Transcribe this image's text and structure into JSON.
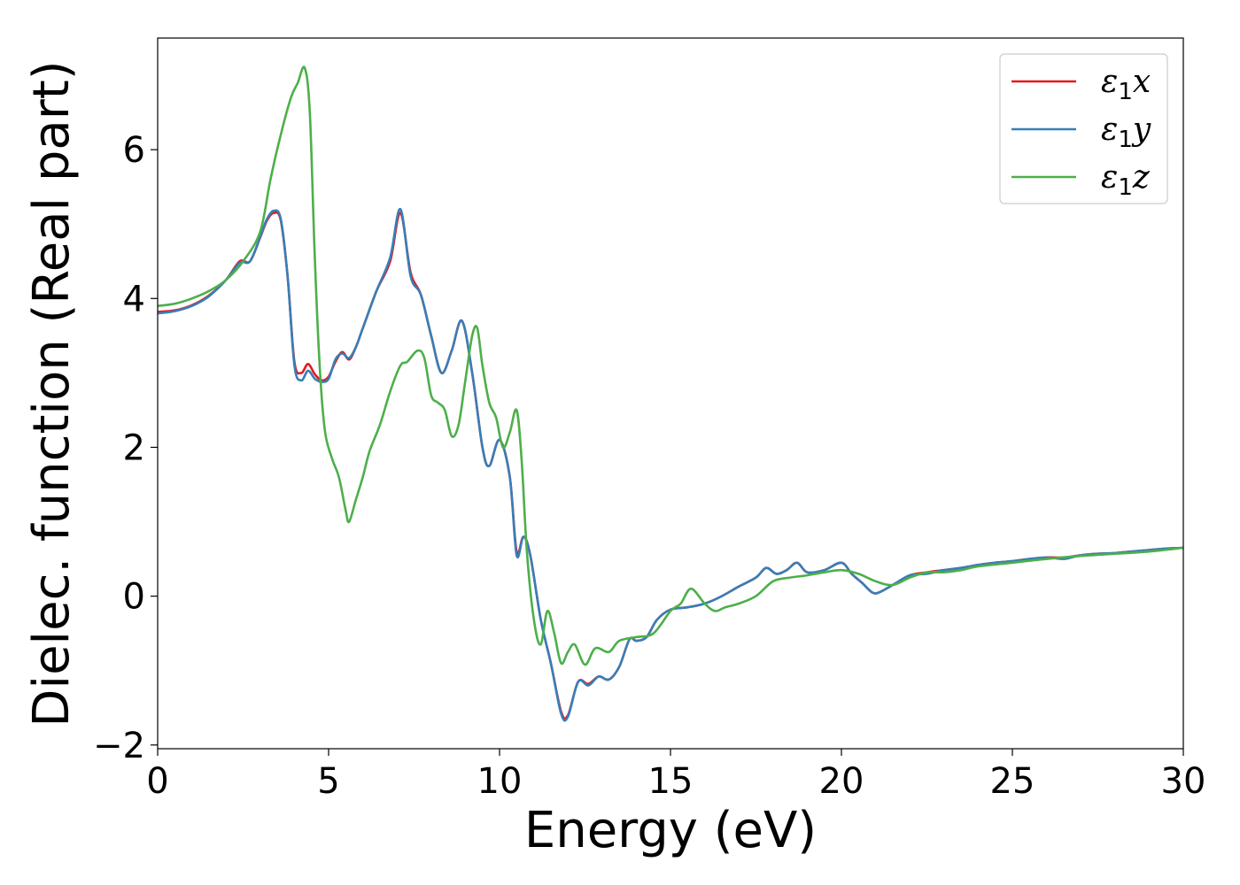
{
  "chart_data": {
    "type": "line",
    "title": "",
    "xlabel": "Energy (eV)",
    "ylabel": "Dielec. function (Real part)",
    "xlim": [
      0,
      30
    ],
    "ylim": [
      -2.05,
      7.5
    ],
    "xticks": [
      0,
      5,
      10,
      15,
      20,
      25,
      30
    ],
    "xtick_labels": [
      "0",
      "5",
      "10",
      "15",
      "20",
      "25",
      "30"
    ],
    "yticks": [
      -2,
      0,
      2,
      4,
      6
    ],
    "ytick_labels": [
      "−2",
      "0",
      "2",
      "4",
      "6"
    ],
    "grid": false,
    "legend": "top-right",
    "series": [
      {
        "name": "ε1x",
        "symbol": "ε",
        "subscript": "1",
        "component": "x",
        "color": "#e41a1c",
        "x": [
          0,
          0.5,
          1,
          1.5,
          2,
          2.4,
          2.7,
          3,
          3.2,
          3.4,
          3.6,
          3.8,
          4,
          4.2,
          4.4,
          4.6,
          4.8,
          5,
          5.2,
          5.4,
          5.6,
          5.8,
          6,
          6.4,
          6.8,
          7.1,
          7.4,
          7.7,
          8,
          8.3,
          8.6,
          8.9,
          9.2,
          9.5,
          9.7,
          10,
          10.3,
          10.5,
          10.7,
          10.9,
          11.2,
          11.5,
          11.8,
          12,
          12.3,
          12.6,
          12.9,
          13.2,
          13.5,
          13.8,
          14,
          14.3,
          14.6,
          15,
          15.5,
          16,
          16.5,
          17,
          17.5,
          17.8,
          18.1,
          18.4,
          18.7,
          19,
          19.5,
          20,
          20.3,
          20.6,
          20.9,
          21.1,
          21.5,
          22,
          22.5,
          23,
          23.5,
          24,
          24.5,
          25,
          25.5,
          26,
          26.5,
          27,
          27.5,
          28,
          28.5,
          29,
          29.5,
          30
        ],
        "y": [
          3.82,
          3.84,
          3.91,
          4.04,
          4.25,
          4.5,
          4.5,
          4.82,
          5.05,
          5.15,
          5.05,
          4.3,
          3.15,
          3.0,
          3.12,
          2.98,
          2.9,
          2.95,
          3.15,
          3.28,
          3.18,
          3.35,
          3.6,
          4.1,
          4.5,
          5.15,
          4.35,
          4.05,
          3.5,
          3.0,
          3.3,
          3.7,
          3.0,
          2.0,
          1.75,
          2.1,
          1.6,
          0.6,
          0.8,
          0.55,
          -0.3,
          -0.9,
          -1.55,
          -1.6,
          -1.15,
          -1.18,
          -1.08,
          -1.12,
          -0.95,
          -0.58,
          -0.6,
          -0.55,
          -0.32,
          -0.18,
          -0.15,
          -0.1,
          0.0,
          0.13,
          0.25,
          0.38,
          0.3,
          0.35,
          0.45,
          0.32,
          0.35,
          0.45,
          0.3,
          0.18,
          0.05,
          0.05,
          0.15,
          0.28,
          0.32,
          0.35,
          0.38,
          0.42,
          0.45,
          0.47,
          0.5,
          0.52,
          0.52,
          0.55,
          0.57,
          0.58,
          0.6,
          0.62,
          0.64,
          0.65
        ]
      },
      {
        "name": "ε1y",
        "symbol": "ε",
        "subscript": "1",
        "component": "y",
        "color": "#377eb8",
        "x": [
          0,
          0.5,
          1,
          1.5,
          2,
          2.4,
          2.7,
          3,
          3.2,
          3.4,
          3.6,
          3.8,
          4,
          4.2,
          4.4,
          4.6,
          4.8,
          5,
          5.2,
          5.4,
          5.6,
          5.8,
          6,
          6.4,
          6.8,
          7.1,
          7.4,
          7.7,
          8,
          8.3,
          8.6,
          8.9,
          9.2,
          9.5,
          9.7,
          10,
          10.3,
          10.5,
          10.7,
          10.9,
          11.2,
          11.5,
          11.8,
          12,
          12.3,
          12.6,
          12.9,
          13.2,
          13.5,
          13.8,
          14,
          14.3,
          14.6,
          15,
          15.5,
          16,
          16.5,
          17,
          17.5,
          17.8,
          18.1,
          18.4,
          18.7,
          19,
          19.5,
          20,
          20.3,
          20.6,
          20.9,
          21.1,
          21.5,
          22,
          22.5,
          23,
          23.5,
          24,
          24.5,
          25,
          25.5,
          26,
          26.5,
          27,
          27.5,
          28,
          28.5,
          29,
          29.5,
          30
        ],
        "y": [
          3.8,
          3.83,
          3.9,
          4.03,
          4.25,
          4.48,
          4.5,
          4.83,
          5.07,
          5.18,
          5.07,
          4.3,
          3.1,
          2.9,
          3.03,
          2.92,
          2.88,
          2.92,
          3.18,
          3.26,
          3.2,
          3.35,
          3.6,
          4.1,
          4.55,
          5.2,
          4.3,
          4.05,
          3.5,
          3.0,
          3.3,
          3.7,
          3.0,
          2.0,
          1.75,
          2.1,
          1.6,
          0.55,
          0.8,
          0.55,
          -0.3,
          -0.9,
          -1.58,
          -1.62,
          -1.15,
          -1.2,
          -1.08,
          -1.12,
          -0.95,
          -0.58,
          -0.6,
          -0.55,
          -0.32,
          -0.18,
          -0.15,
          -0.1,
          0.0,
          0.13,
          0.25,
          0.38,
          0.3,
          0.35,
          0.45,
          0.32,
          0.35,
          0.45,
          0.3,
          0.18,
          0.05,
          0.05,
          0.15,
          0.28,
          0.3,
          0.35,
          0.38,
          0.42,
          0.45,
          0.47,
          0.5,
          0.52,
          0.5,
          0.55,
          0.57,
          0.58,
          0.6,
          0.62,
          0.64,
          0.65
        ]
      },
      {
        "name": "ε1z",
        "symbol": "ε",
        "subscript": "1",
        "component": "z",
        "color": "#4daf4a",
        "x": [
          0,
          0.5,
          1,
          1.5,
          2,
          2.5,
          3,
          3.3,
          3.6,
          3.9,
          4.1,
          4.3,
          4.45,
          4.6,
          4.75,
          4.9,
          5.1,
          5.3,
          5.5,
          5.6,
          5.8,
          6,
          6.2,
          6.5,
          6.8,
          7.1,
          7.3,
          7.6,
          7.8,
          8,
          8.2,
          8.4,
          8.6,
          8.8,
          9,
          9.2,
          9.35,
          9.5,
          9.7,
          9.9,
          10.1,
          10.3,
          10.5,
          10.65,
          10.8,
          11,
          11.2,
          11.4,
          11.6,
          11.8,
          12,
          12.2,
          12.5,
          12.8,
          13.2,
          13.5,
          14,
          14.5,
          15,
          15.3,
          15.6,
          16,
          16.3,
          16.6,
          17,
          17.5,
          18,
          18.5,
          19,
          19.5,
          20,
          20.5,
          21,
          21.5,
          22,
          22.5,
          23,
          23.5,
          24,
          25,
          26,
          27,
          28,
          29,
          30
        ],
        "y": [
          3.9,
          3.93,
          4.0,
          4.1,
          4.25,
          4.5,
          4.9,
          5.6,
          6.2,
          6.7,
          6.9,
          7.1,
          6.5,
          4.5,
          3.0,
          2.2,
          1.85,
          1.6,
          1.15,
          1.0,
          1.3,
          1.6,
          1.95,
          2.3,
          2.75,
          3.1,
          3.15,
          3.3,
          3.2,
          2.7,
          2.6,
          2.5,
          2.15,
          2.3,
          2.9,
          3.5,
          3.6,
          3.1,
          2.6,
          2.4,
          2.0,
          2.2,
          2.5,
          1.8,
          0.6,
          -0.3,
          -0.65,
          -0.2,
          -0.5,
          -0.9,
          -0.75,
          -0.65,
          -0.92,
          -0.7,
          -0.75,
          -0.6,
          -0.55,
          -0.5,
          -0.2,
          -0.1,
          0.1,
          -0.1,
          -0.2,
          -0.15,
          -0.1,
          0.0,
          0.2,
          0.25,
          0.28,
          0.32,
          0.35,
          0.3,
          0.2,
          0.15,
          0.25,
          0.32,
          0.32,
          0.35,
          0.4,
          0.45,
          0.5,
          0.54,
          0.57,
          0.6,
          0.65
        ]
      }
    ]
  }
}
